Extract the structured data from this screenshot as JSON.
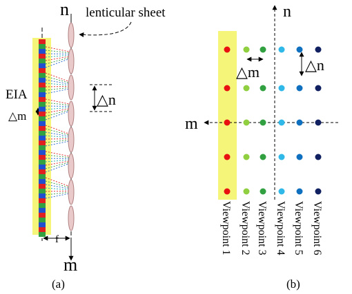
{
  "panel_a": {
    "axis_top": "n",
    "lens_label": "lenticular sheet",
    "eia_label": "EIA",
    "delta_m": "△m",
    "delta_n": "△n",
    "focal": "f",
    "axis_bottom": "m",
    "caption": "(a)"
  },
  "panel_b": {
    "axis_n": "n",
    "axis_m": "m",
    "delta_m": "△m",
    "delta_n": "△n",
    "viewpoints": [
      "Viewpoint 1",
      "Viewpoint 2",
      "Viewpoint 3",
      "Viewpoint 4",
      "Viewpoint 5",
      "Viewpoint 6"
    ],
    "caption": "(b)"
  }
}
